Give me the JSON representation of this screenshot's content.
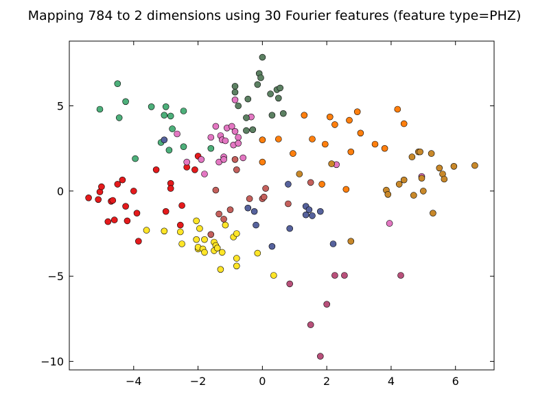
{
  "chart_data": {
    "type": "scatter",
    "title": "Mapping 784 to 2 dimensions using 30 Fourier features (feature type=PHZ)",
    "xlabel": "",
    "ylabel": "",
    "xlim": [
      -6.0,
      7.2
    ],
    "ylim": [
      -10.5,
      8.8
    ],
    "xticks": [
      -4,
      -2,
      0,
      2,
      4,
      6
    ],
    "yticks": [
      5,
      0,
      -5,
      -10
    ],
    "grid": false,
    "series": [
      {
        "color": "#e41a1c",
        "points": [
          [
            -5.4,
            -0.4
          ],
          [
            -5.1,
            -0.5
          ],
          [
            -5.05,
            -0.05
          ],
          [
            -5.0,
            0.25
          ],
          [
            -4.8,
            -1.8
          ],
          [
            -4.7,
            -0.6
          ],
          [
            -4.65,
            -0.55
          ],
          [
            -4.6,
            -1.7
          ],
          [
            -4.5,
            0.4
          ],
          [
            -4.35,
            0.65
          ],
          [
            -4.25,
            -0.9
          ],
          [
            -4.2,
            -1.75
          ],
          [
            -4.0,
            0.0
          ],
          [
            -3.9,
            -1.3
          ],
          [
            -3.85,
            -2.95
          ],
          [
            -3.3,
            1.25
          ],
          [
            -3.0,
            -1.2
          ],
          [
            -2.85,
            0.45
          ],
          [
            -2.85,
            0.15
          ],
          [
            -2.55,
            -2.0
          ],
          [
            -2.5,
            -0.85
          ],
          [
            -2.35,
            1.4
          ],
          [
            -2.1,
            1.25
          ],
          [
            -2.0,
            2.05
          ]
        ]
      },
      {
        "color": "#ffe528",
        "points": [
          [
            -3.6,
            -2.3
          ],
          [
            -3.05,
            -2.35
          ],
          [
            -2.55,
            -2.4
          ],
          [
            -2.5,
            -3.1
          ],
          [
            -2.05,
            -1.75
          ],
          [
            -2.05,
            -2.85
          ],
          [
            -2.0,
            -3.4
          ],
          [
            -2.0,
            -3.3
          ],
          [
            -1.95,
            -2.2
          ],
          [
            -1.85,
            -3.4
          ],
          [
            -1.8,
            -3.6
          ],
          [
            -1.8,
            -2.85
          ],
          [
            -1.5,
            -3.0
          ],
          [
            -1.5,
            -3.5
          ],
          [
            -1.45,
            -3.2
          ],
          [
            -1.4,
            -3.35
          ],
          [
            -1.3,
            -4.6
          ],
          [
            -1.25,
            -3.6
          ],
          [
            -1.15,
            -2.0
          ],
          [
            -0.9,
            -2.7
          ],
          [
            -0.8,
            -2.5
          ],
          [
            -0.8,
            -3.95
          ],
          [
            -0.8,
            -4.4
          ],
          [
            -0.15,
            -3.65
          ],
          [
            0.35,
            -4.95
          ]
        ]
      },
      {
        "color": "#4daf7a",
        "points": [
          [
            -5.05,
            4.8
          ],
          [
            -4.5,
            6.3
          ],
          [
            -4.45,
            4.3
          ],
          [
            -4.25,
            5.25
          ],
          [
            -3.95,
            1.9
          ],
          [
            -3.45,
            4.95
          ],
          [
            -3.15,
            2.85
          ],
          [
            -3.05,
            4.45
          ],
          [
            -3.0,
            4.95
          ],
          [
            -2.9,
            2.4
          ],
          [
            -2.85,
            4.4
          ],
          [
            -2.8,
            3.65
          ],
          [
            -2.45,
            4.7
          ],
          [
            -2.45,
            2.6
          ],
          [
            -1.6,
            2.5
          ]
        ]
      },
      {
        "color": "#e377c2",
        "points": [
          [
            -2.65,
            3.35
          ],
          [
            -2.35,
            1.7
          ],
          [
            -1.9,
            1.85
          ],
          [
            -1.8,
            1.0
          ],
          [
            -1.6,
            3.15
          ],
          [
            -1.45,
            3.8
          ],
          [
            -1.35,
            1.7
          ],
          [
            -1.3,
            3.25
          ],
          [
            -1.25,
            3.0
          ],
          [
            -1.2,
            2.0
          ],
          [
            -1.2,
            1.85
          ],
          [
            -1.15,
            2.95
          ],
          [
            -1.1,
            3.7
          ],
          [
            -0.95,
            3.8
          ],
          [
            -0.9,
            2.7
          ],
          [
            -0.85,
            3.5
          ],
          [
            -0.85,
            5.35
          ],
          [
            -0.75,
            3.15
          ],
          [
            -0.75,
            2.8
          ],
          [
            -0.6,
            1.95
          ],
          [
            -0.35,
            4.35
          ],
          [
            3.95,
            -1.9
          ],
          [
            4.95,
            0.85
          ],
          [
            2.3,
            1.55
          ]
        ]
      },
      {
        "color": "#5c8062",
        "points": [
          [
            -0.85,
            6.15
          ],
          [
            -0.85,
            5.8
          ],
          [
            -0.75,
            5.0
          ],
          [
            -0.5,
            4.3
          ],
          [
            -0.5,
            3.55
          ],
          [
            -0.45,
            5.4
          ],
          [
            -0.3,
            3.6
          ],
          [
            -0.15,
            6.25
          ],
          [
            -0.1,
            6.9
          ],
          [
            -0.05,
            6.65
          ],
          [
            0.0,
            7.85
          ],
          [
            0.25,
            5.7
          ],
          [
            0.3,
            4.45
          ],
          [
            0.45,
            5.95
          ],
          [
            0.5,
            5.45
          ],
          [
            0.55,
            6.05
          ],
          [
            0.65,
            4.55
          ]
        ]
      },
      {
        "color": "#c4605c",
        "points": [
          [
            -1.6,
            -2.55
          ],
          [
            -1.45,
            0.05
          ],
          [
            -1.35,
            -1.35
          ],
          [
            -1.2,
            -1.65
          ],
          [
            -1.0,
            -1.1
          ],
          [
            -0.85,
            1.85
          ],
          [
            -0.8,
            1.25
          ],
          [
            -0.4,
            -0.45
          ],
          [
            0.0,
            -0.45
          ],
          [
            0.05,
            -0.35
          ],
          [
            0.1,
            0.15
          ],
          [
            0.8,
            -0.75
          ],
          [
            1.5,
            0.5
          ]
        ]
      },
      {
        "color": "#ff7f0e",
        "points": [
          [
            0.0,
            3.0
          ],
          [
            0.0,
            1.7
          ],
          [
            0.5,
            3.05
          ],
          [
            0.95,
            2.2
          ],
          [
            1.3,
            4.45
          ],
          [
            1.55,
            3.05
          ],
          [
            1.85,
            0.4
          ],
          [
            1.95,
            2.75
          ],
          [
            2.1,
            4.35
          ],
          [
            2.25,
            3.9
          ],
          [
            2.6,
            0.1
          ],
          [
            2.7,
            4.15
          ],
          [
            2.75,
            2.3
          ],
          [
            2.95,
            4.65
          ],
          [
            3.05,
            3.4
          ],
          [
            3.5,
            2.75
          ],
          [
            3.8,
            2.5
          ],
          [
            4.2,
            4.8
          ],
          [
            4.4,
            3.95
          ]
        ]
      },
      {
        "color": "#56629c",
        "points": [
          [
            -3.05,
            3.0
          ],
          [
            -0.45,
            -1.0
          ],
          [
            -0.25,
            -1.2
          ],
          [
            -0.2,
            -2.0
          ],
          [
            0.3,
            -3.25
          ],
          [
            0.8,
            0.4
          ],
          [
            0.85,
            -2.2
          ],
          [
            1.35,
            -0.9
          ],
          [
            1.35,
            -1.4
          ],
          [
            1.45,
            -1.1
          ],
          [
            1.55,
            -1.45
          ],
          [
            1.8,
            -1.2
          ],
          [
            2.2,
            -3.1
          ]
        ]
      },
      {
        "color": "#c8882a",
        "points": [
          [
            1.15,
            1.0
          ],
          [
            2.15,
            1.6
          ],
          [
            2.75,
            -2.95
          ],
          [
            3.85,
            0.05
          ],
          [
            3.9,
            -0.2
          ],
          [
            4.25,
            0.4
          ],
          [
            4.4,
            0.65
          ],
          [
            4.65,
            2.0
          ],
          [
            4.7,
            -0.25
          ],
          [
            4.85,
            2.3
          ],
          [
            4.9,
            2.3
          ],
          [
            4.95,
            0.75
          ],
          [
            5.0,
            0.0
          ],
          [
            5.25,
            2.2
          ],
          [
            5.3,
            -1.3
          ],
          [
            5.5,
            1.35
          ],
          [
            5.6,
            1.0
          ],
          [
            5.65,
            0.7
          ],
          [
            5.95,
            1.45
          ],
          [
            6.6,
            1.5
          ]
        ]
      },
      {
        "color": "#b8507a",
        "points": [
          [
            0.85,
            -5.45
          ],
          [
            1.5,
            -7.85
          ],
          [
            1.8,
            -9.7
          ],
          [
            2.0,
            -6.65
          ],
          [
            2.25,
            -4.95
          ],
          [
            2.55,
            -4.95
          ],
          [
            4.3,
            -4.95
          ]
        ]
      }
    ]
  }
}
